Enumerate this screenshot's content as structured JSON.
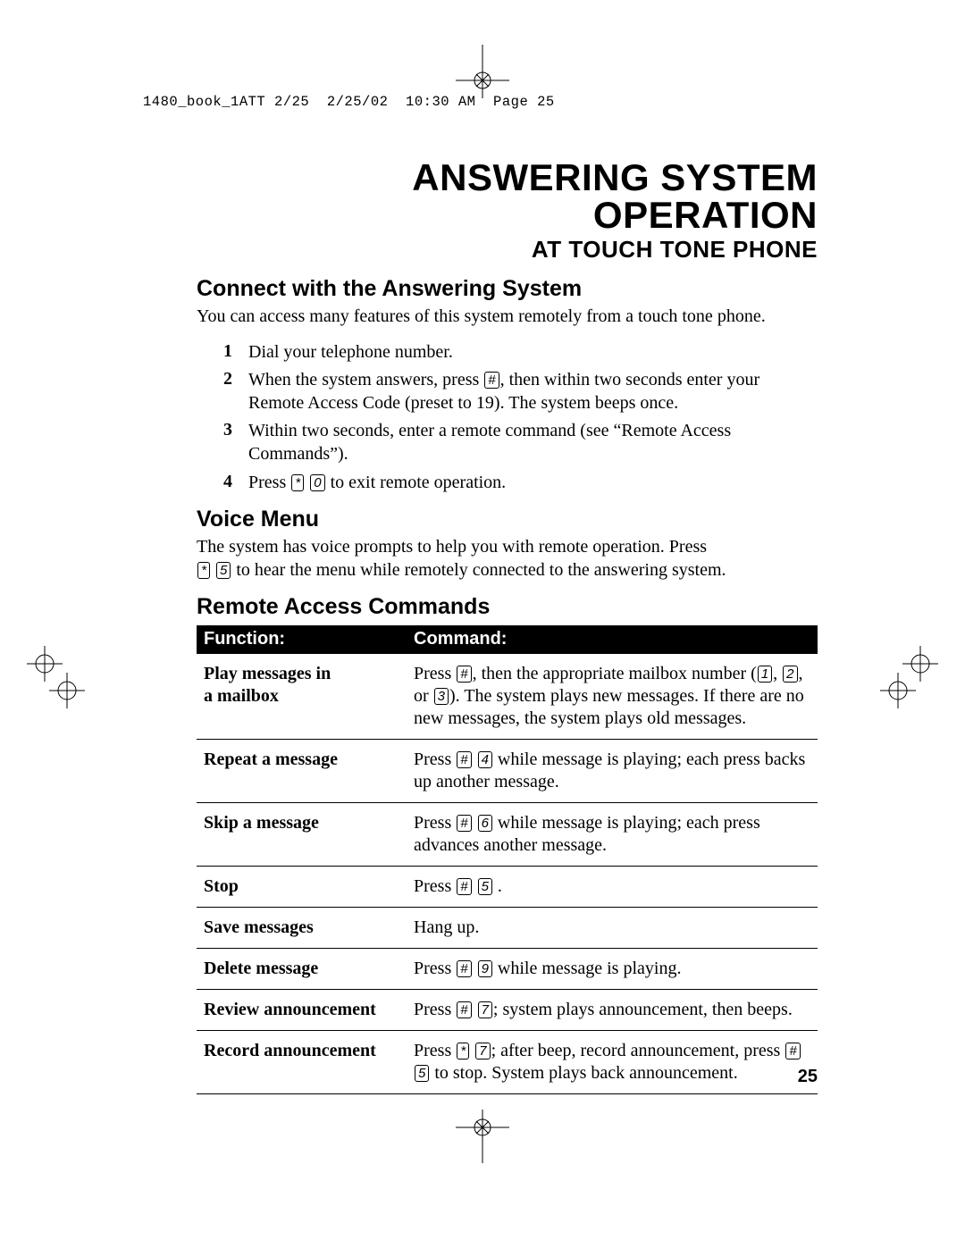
{
  "header_line": "1480_book_1ATT 2/25  2/25/02  10:30 AM  Page 25",
  "title": "ANSWERING SYSTEM OPERATION",
  "subtitle": "AT TOUCH TONE PHONE",
  "page_number": "25",
  "sections": {
    "connect": {
      "heading": "Connect with the Answering System",
      "intro": "You can access many features of this system remotely from a touch tone phone.",
      "steps": [
        {
          "n": "1",
          "text": "Dial your telephone number."
        },
        {
          "n": "2",
          "text_pre": "When the system answers, press ",
          "key1": "#",
          "text_post": ", then within two seconds enter your Remote Access Code (preset to 19).  The system beeps once."
        },
        {
          "n": "3",
          "text": "Within two seconds, enter a remote command (see “Remote Access Commands”)."
        },
        {
          "n": "4",
          "text_pre": "Press ",
          "key1": "*",
          "key2": "0",
          "text_post": " to exit remote operation."
        }
      ]
    },
    "voice_menu": {
      "heading": "Voice Menu",
      "line1": "The system has voice prompts to help you with remote operation.  Press",
      "key1": "*",
      "key2": "5",
      "line2": " to hear the menu while remotely connected to the answering system."
    },
    "remote": {
      "heading": "Remote Access Commands",
      "head_func": "Function:",
      "head_cmd": "Command:",
      "rows": [
        {
          "func": "Play messages in a mailbox",
          "cmd_parts": [
            {
              "t": "Press "
            },
            {
              "k": "#"
            },
            {
              "t": ", then the appropriate mailbox number ("
            },
            {
              "k": "1"
            },
            {
              "t": ", "
            },
            {
              "k": "2"
            },
            {
              "t": ", or "
            },
            {
              "k": "3"
            },
            {
              "t": ").  The system plays new messages.  If there are no new messages, the system plays old messages."
            }
          ]
        },
        {
          "func": "Repeat a message",
          "cmd_parts": [
            {
              "t": "Press "
            },
            {
              "k": "#"
            },
            {
              "t": " "
            },
            {
              "k": "4"
            },
            {
              "t": "  while message is playing; each press backs up another message."
            }
          ]
        },
        {
          "func": "Skip a message",
          "cmd_parts": [
            {
              "t": "Press "
            },
            {
              "k": "#"
            },
            {
              "t": " "
            },
            {
              "k": "6"
            },
            {
              "t": "  while message is playing; each press advances another message."
            }
          ]
        },
        {
          "func": "Stop",
          "cmd_parts": [
            {
              "t": "Press "
            },
            {
              "k": "#"
            },
            {
              "t": " "
            },
            {
              "k": "5"
            },
            {
              "t": " ."
            }
          ]
        },
        {
          "func": "Save messages",
          "cmd_parts": [
            {
              "t": "Hang up."
            }
          ]
        },
        {
          "func": "Delete message",
          "cmd_parts": [
            {
              "t": "Press "
            },
            {
              "k": "#"
            },
            {
              "t": " "
            },
            {
              "k": "9"
            },
            {
              "t": "  while message is playing."
            }
          ]
        },
        {
          "func": "Review announcement",
          "cmd_parts": [
            {
              "t": "Press "
            },
            {
              "k": "#"
            },
            {
              "t": " "
            },
            {
              "k": "7"
            },
            {
              "t": "; system plays announcement, then beeps."
            }
          ]
        },
        {
          "func": "Record announcement",
          "cmd_parts": [
            {
              "t": "Press "
            },
            {
              "k": "*"
            },
            {
              "t": " "
            },
            {
              "k": "7"
            },
            {
              "t": "; after beep, record announcement, press "
            },
            {
              "k": "#"
            },
            {
              "t": " "
            },
            {
              "k": "5"
            },
            {
              "t": " to stop. System plays back announcement."
            }
          ]
        }
      ]
    }
  },
  "colors": {
    "text": "#000000",
    "bg": "#ffffff",
    "table_head_bg": "#000000",
    "table_head_fg": "#ffffff"
  }
}
